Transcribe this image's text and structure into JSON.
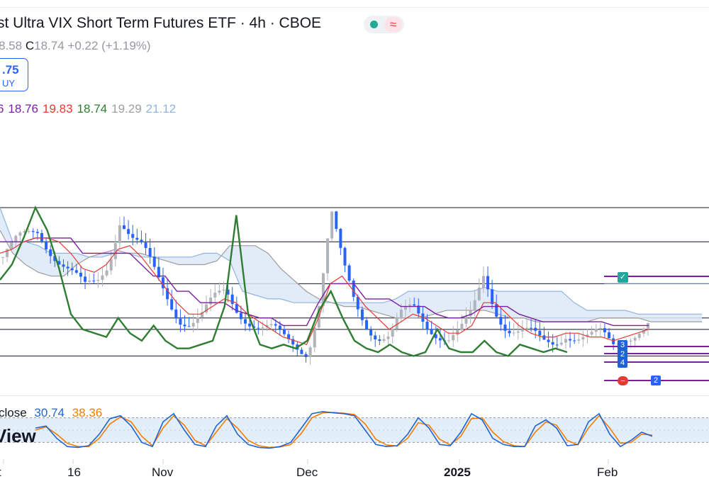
{
  "header": {
    "title": "st Ultra VIX Short Term Futures ETF · 4h · CBOE",
    "status_icon": "market-open-dot",
    "wave_icon": "≈"
  },
  "ohlc": {
    "open": "8.58",
    "close_label": "C",
    "close": "18.74",
    "change": "+0.22 (+1.19%)"
  },
  "buy_button": {
    "price": ".75",
    "label": "UY"
  },
  "ichimoku_values": [
    {
      "text": "6",
      "color": "#7b1fa2"
    },
    {
      "text": "18.76",
      "color": "#7b1fa2"
    },
    {
      "text": "19.83",
      "color": "#e53935"
    },
    {
      "text": "18.74",
      "color": "#2e7d32"
    },
    {
      "text": "19.29",
      "color": "#9e9e9e"
    },
    {
      "text": "21.12",
      "color": "#90b4e0"
    }
  ],
  "stoch_legend": {
    "source": "close",
    "k": "30.74",
    "d": "38.36"
  },
  "watermark": "View",
  "markers": {
    "check": "✓",
    "stop": "−",
    "badges": [
      "2",
      "4",
      "2",
      "3"
    ]
  },
  "colors": {
    "candle_up": "#b0b3b8",
    "candle_down": "#2962ff",
    "tenkan": "#e53935",
    "kijun": "#7b1fa2",
    "chikou": "#2e7d32",
    "cloud_fill": "#dde7f7",
    "cloud_line_a": "#90b4e0",
    "cloud_line_b": "#9e9e9e",
    "stoch_k": "#1e63d6",
    "stoch_d": "#f57c00"
  },
  "chart_data": {
    "type": "line",
    "x_ticks": [
      "t",
      "16",
      "Nov",
      "Dec",
      "2025",
      "Feb"
    ],
    "price_lines": [
      17.9,
      18.6,
      18.9,
      19.8,
      20.9,
      21.8
    ],
    "series": [
      {
        "name": "close",
        "values": [
          20.5,
          20.8,
          21.0,
          21.2,
          20.8,
          20.4,
          20.0,
          19.6,
          19.8,
          20.4,
          21.6,
          21.0,
          20.6,
          20.0,
          19.5,
          19.0,
          18.8,
          18.9,
          19.3,
          19.6,
          19.2,
          18.9,
          18.6,
          18.5,
          18.3,
          18.2,
          18.1,
          19.4,
          21.6,
          20.2,
          19.3,
          18.8,
          18.5,
          18.4,
          18.9,
          19.1,
          18.8,
          18.6,
          18.4,
          18.5,
          18.9,
          20.0,
          19.2,
          18.7,
          18.5,
          18.4,
          18.2,
          18.3,
          18.6,
          18.4,
          18.3,
          18.4,
          18.2,
          18.5,
          18.6,
          18.7
        ]
      },
      {
        "name": "tenkan",
        "values": [
          20.6,
          20.7,
          20.9,
          21.0,
          21.0,
          20.9,
          20.6,
          20.2,
          20.1,
          20.3,
          20.7,
          20.8,
          20.5,
          20.1,
          19.7,
          19.3,
          19.0,
          19.0,
          19.2,
          19.4,
          19.3,
          19.0,
          18.8,
          18.6,
          18.4,
          18.3,
          18.2,
          18.9,
          19.8,
          20.0,
          19.6,
          19.2,
          18.9,
          18.6,
          18.8,
          19.0,
          18.9,
          18.7,
          18.5,
          18.5,
          18.7,
          19.3,
          19.3,
          19.0,
          18.7,
          18.5,
          18.4,
          18.4,
          18.5,
          18.5,
          18.4,
          18.4,
          18.3,
          18.4,
          18.5,
          18.6
        ]
      },
      {
        "name": "kijun",
        "values": [
          20.9,
          20.9,
          20.9,
          21.0,
          21.0,
          21.0,
          21.0,
          20.6,
          20.6,
          20.6,
          20.6,
          20.6,
          20.3,
          20.0,
          20.0,
          19.6,
          19.6,
          19.3,
          19.3,
          19.3,
          19.1,
          19.0,
          18.9,
          18.9,
          18.7,
          18.7,
          18.7,
          19.3,
          19.8,
          19.8,
          19.8,
          19.4,
          19.4,
          19.4,
          19.2,
          19.2,
          19.2,
          19.0,
          18.9,
          18.9,
          19.0,
          19.2,
          19.2,
          19.2,
          19.0,
          18.9,
          18.8,
          18.8,
          18.8,
          18.8,
          18.8,
          18.8,
          18.7,
          18.7,
          18.7,
          18.7
        ]
      },
      {
        "name": "chikou",
        "values": [
          19.9,
          20.3,
          21.0,
          21.8,
          21.2,
          20.2,
          19.0,
          18.6,
          18.5,
          18.4,
          18.9,
          18.5,
          18.3,
          18.7,
          18.3,
          18.1,
          18.1,
          18.2,
          18.3,
          19.2,
          21.6,
          19.0,
          18.2,
          18.1,
          18.2,
          18.1,
          18.3,
          19.1,
          19.6,
          18.9,
          18.3,
          18.1,
          18.0,
          18.2,
          18.0,
          17.9,
          18.0,
          18.6,
          18.1,
          18.0,
          18.0,
          18.3,
          18.0,
          17.9,
          18.2,
          18.1,
          18.0,
          18.1,
          18.0
        ]
      },
      {
        "name": "senkou_a",
        "values": [
          21.8,
          20.9,
          20.9,
          20.8,
          20.6,
          20.6,
          20.6,
          20.5,
          20.5,
          20.6,
          20.6,
          20.5,
          20.5,
          20.5,
          20.5,
          20.5,
          20.6,
          20.6,
          20.4,
          19.6,
          19.5,
          19.4,
          19.4,
          19.3,
          19.3,
          19.3,
          19.3,
          19.3,
          19.3,
          19.3,
          19.3,
          19.4,
          19.6,
          19.6,
          19.6,
          19.6,
          19.6,
          19.6,
          19.7,
          19.6,
          19.6,
          19.6,
          19.6,
          19.6,
          19.6,
          19.3,
          19.1,
          19.1,
          19.1,
          19.1,
          19.0,
          19.0,
          19.0,
          19.0,
          19.0,
          19.0
        ]
      },
      {
        "name": "senkou_b",
        "values": [
          21.2,
          20.6,
          20.3,
          20.1,
          20.0,
          20.0,
          20.3,
          20.5,
          20.6,
          20.7,
          20.6,
          20.6,
          20.5,
          20.4,
          20.3,
          20.3,
          20.3,
          20.4,
          20.8,
          20.8,
          20.8,
          20.6,
          20.2,
          19.9,
          19.6,
          19.4,
          19.3,
          19.2,
          19.2,
          19.1,
          19.0,
          18.9,
          18.9,
          18.9,
          19.0,
          19.1,
          19.1,
          19.1,
          19.1,
          19.0,
          18.9,
          18.9,
          18.8,
          18.8,
          18.8,
          18.8,
          18.8,
          18.9,
          18.9,
          18.9,
          18.9,
          18.8,
          18.8,
          18.8,
          18.8,
          18.8
        ]
      },
      {
        "name": "stoch_k",
        "values": [
          55,
          60,
          30,
          10,
          8,
          12,
          40,
          78,
          85,
          60,
          20,
          10,
          70,
          90,
          50,
          15,
          10,
          60,
          85,
          40,
          15,
          8,
          6,
          10,
          20,
          55,
          90,
          95,
          92,
          90,
          85,
          50,
          15,
          10,
          12,
          40,
          80,
          55,
          15,
          12,
          45,
          90,
          75,
          30,
          15,
          10,
          10,
          60,
          75,
          55,
          12,
          15,
          70,
          90,
          40,
          10,
          25,
          45,
          35
        ]
      },
      {
        "name": "stoch_d",
        "values": [
          50,
          58,
          40,
          18,
          10,
          10,
          30,
          65,
          82,
          70,
          35,
          12,
          55,
          85,
          62,
          25,
          12,
          45,
          78,
          55,
          25,
          12,
          8,
          9,
          15,
          42,
          80,
          92,
          93,
          91,
          88,
          65,
          28,
          14,
          11,
          30,
          68,
          62,
          28,
          14,
          35,
          78,
          80,
          45,
          22,
          12,
          10,
          45,
          70,
          62,
          25,
          14,
          55,
          85,
          55,
          18,
          20,
          40,
          38
        ]
      }
    ],
    "ichimoku_legend": [
      "18.76",
      "19.83",
      "18.74",
      "19.29",
      "21.12"
    ],
    "stochastic": {
      "k": 30.74,
      "d": 38.36,
      "bands": [
        20,
        80
      ]
    }
  }
}
